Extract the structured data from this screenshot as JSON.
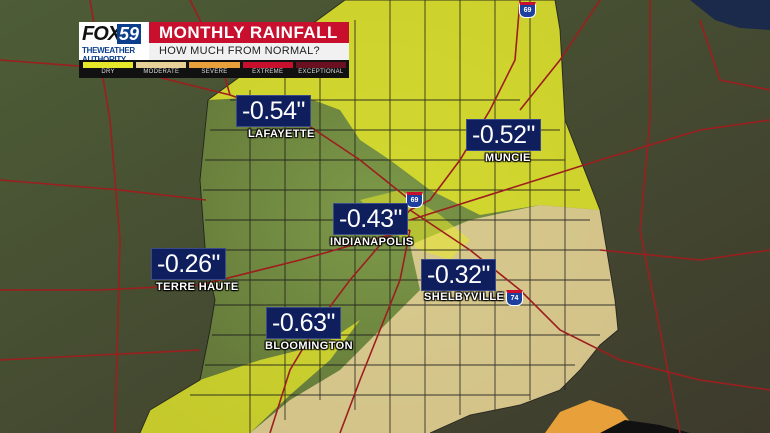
{
  "header": {
    "logo_brand": "FOX",
    "logo_number": "59",
    "logo_tagline": "THEWEATHER AUTHORITY",
    "title": "MONTHLY RAINFALL",
    "subtitle": "HOW MUCH FROM NORMAL?"
  },
  "legend": [
    {
      "label": "DRY",
      "color": "#e8e82a"
    },
    {
      "label": "MODERATE",
      "color": "#e7d199"
    },
    {
      "label": "SEVERE",
      "color": "#e8a13a"
    },
    {
      "label": "EXTREME",
      "color": "#c8102e"
    },
    {
      "label": "EXCEPTIONAL",
      "color": "#6b1020"
    }
  ],
  "cities": [
    {
      "name": "LAFAYETTE",
      "value": "-0.54\""
    },
    {
      "name": "MUNCIE",
      "value": "-0.52\""
    },
    {
      "name": "INDIANAPOLIS",
      "value": "-0.43\""
    },
    {
      "name": "TERRE HAUTE",
      "value": "-0.26\""
    },
    {
      "name": "SHELBYVILLE",
      "value": "-0.32\""
    },
    {
      "name": "BLOOMINGTON",
      "value": "-0.63\""
    }
  ],
  "shields": [
    "69",
    "69",
    "74"
  ],
  "colors": {
    "dry": "#e8e82a",
    "moderate": "#e7d199",
    "severe": "#e8a13a",
    "land": "#6c8a3a",
    "road": "#9c1e1e",
    "label_bg": "#0f1f5e"
  }
}
